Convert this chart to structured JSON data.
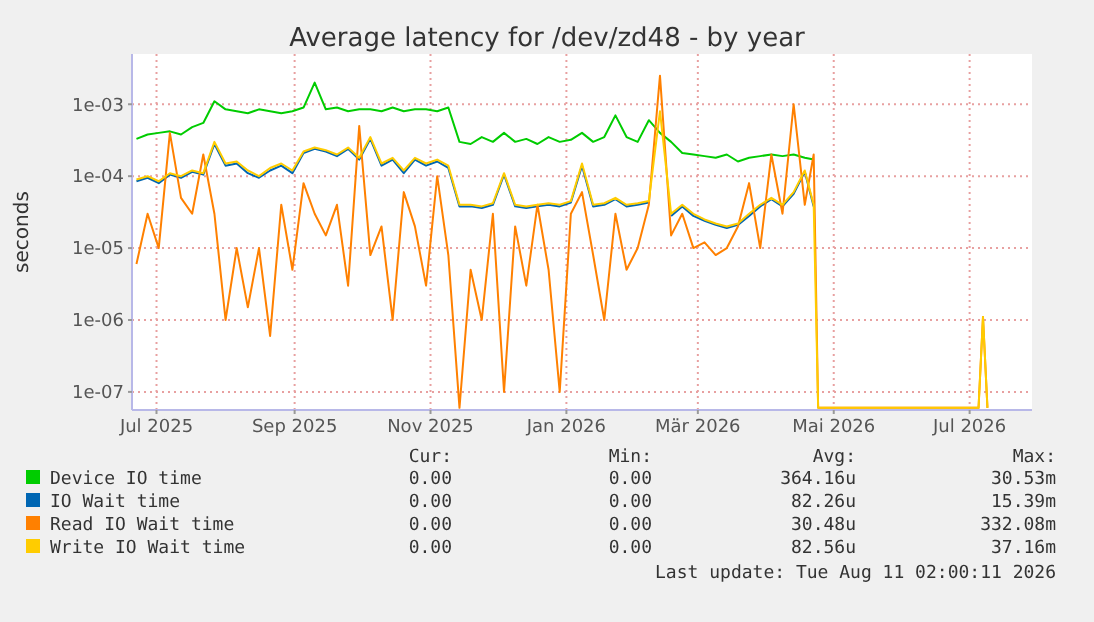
{
  "chart_data": {
    "type": "line",
    "title": "Average latency for /dev/zd48 - by year",
    "ylabel": "seconds",
    "log": true,
    "grid": true,
    "legend": "bottom",
    "xlim": [
      "2025-06-20",
      "2026-07-29"
    ],
    "xticks": [
      {
        "value": "2025-07-01",
        "label": "Jul 2025"
      },
      {
        "value": "2025-09-01",
        "label": "Sep 2025"
      },
      {
        "value": "2025-11-01",
        "label": "Nov 2025"
      },
      {
        "value": "2026-01-01",
        "label": "Jan 2026"
      },
      {
        "value": "2026-03-01",
        "label": "Mär 2026"
      },
      {
        "value": "2026-05-01",
        "label": "Mai 2026"
      },
      {
        "value": "2026-07-01",
        "label": "Jul 2026"
      }
    ],
    "ylim": [
      5.6e-08,
      0.005
    ],
    "yticks": [
      {
        "value": 1e-07,
        "label": "1e-07"
      },
      {
        "value": 1e-06,
        "label": "1e-06"
      },
      {
        "value": 1e-05,
        "label": "1e-05"
      },
      {
        "value": 0.0001,
        "label": "1e-04"
      },
      {
        "value": 0.001,
        "label": "1e-03"
      }
    ],
    "x": [
      "2025-06-22",
      "2025-06-27",
      "2025-07-02",
      "2025-07-07",
      "2025-07-12",
      "2025-07-17",
      "2025-07-22",
      "2025-07-27",
      "2025-08-01",
      "2025-08-06",
      "2025-08-11",
      "2025-08-16",
      "2025-08-21",
      "2025-08-26",
      "2025-08-31",
      "2025-09-05",
      "2025-09-10",
      "2025-09-15",
      "2025-09-20",
      "2025-09-25",
      "2025-09-30",
      "2025-10-05",
      "2025-10-10",
      "2025-10-15",
      "2025-10-20",
      "2025-10-25",
      "2025-10-30",
      "2025-11-04",
      "2025-11-09",
      "2025-11-14",
      "2025-11-19",
      "2025-11-24",
      "2025-11-29",
      "2025-12-04",
      "2025-12-09",
      "2025-12-14",
      "2025-12-19",
      "2025-12-24",
      "2025-12-29",
      "2026-01-03",
      "2026-01-08",
      "2026-01-13",
      "2026-01-18",
      "2026-01-23",
      "2026-01-28",
      "2026-02-02",
      "2026-02-07",
      "2026-02-12",
      "2026-02-17",
      "2026-02-22",
      "2026-02-27",
      "2026-03-04",
      "2026-03-09",
      "2026-03-14",
      "2026-03-19",
      "2026-03-24",
      "2026-03-29",
      "2026-04-03",
      "2026-04-08",
      "2026-04-13",
      "2026-04-18",
      "2026-04-22",
      "2026-04-24",
      "2026-07-05",
      "2026-07-07",
      "2026-07-09"
    ],
    "series": [
      {
        "name": "Device IO time",
        "color": "#00cc00",
        "values": [
          0.00033,
          0.00038,
          0.0004,
          0.00042,
          0.00038,
          0.00048,
          0.00055,
          0.0011,
          0.00085,
          0.0008,
          0.00075,
          0.00085,
          0.0008,
          0.00075,
          0.0008,
          0.0009,
          0.002,
          0.00085,
          0.0009,
          0.0008,
          0.00085,
          0.00085,
          0.0008,
          0.0009,
          0.0008,
          0.00085,
          0.00085,
          0.0008,
          0.0009,
          0.0003,
          0.00028,
          0.00035,
          0.0003,
          0.0004,
          0.0003,
          0.00033,
          0.00028,
          0.00035,
          0.0003,
          0.00032,
          0.0004,
          0.0003,
          0.00035,
          0.0007,
          0.00035,
          0.0003,
          0.0006,
          0.0004,
          0.0003,
          0.00021,
          0.0002,
          0.00019,
          0.00018,
          0.0002,
          0.00016,
          0.00018,
          0.00019,
          0.0002,
          0.00019,
          0.0002,
          0.00018,
          0.00017,
          null,
          null,
          null,
          null
        ]
      },
      {
        "name": "IO Wait time",
        "color": "#0066b3",
        "values": [
          8.5e-05,
          9.5e-05,
          8e-05,
          0.000105,
          9.5e-05,
          0.000115,
          0.000105,
          0.00028,
          0.00014,
          0.00015,
          0.00011,
          9.5e-05,
          0.00012,
          0.00014,
          0.00011,
          0.00021,
          0.00024,
          0.00022,
          0.00019,
          0.00024,
          0.00017,
          0.00033,
          0.00014,
          0.00017,
          0.00011,
          0.00017,
          0.00014,
          0.00016,
          0.00013,
          3.8e-05,
          3.8e-05,
          3.6e-05,
          4e-05,
          0.000105,
          3.8e-05,
          3.6e-05,
          3.8e-05,
          4e-05,
          3.8e-05,
          4.3e-05,
          0.00014,
          3.8e-05,
          4e-05,
          4.8e-05,
          3.8e-05,
          4e-05,
          4.3e-05,
          null,
          2.8e-05,
          3.8e-05,
          2.8e-05,
          2.4e-05,
          2.1e-05,
          1.9e-05,
          2.1e-05,
          2.8e-05,
          3.8e-05,
          4.8e-05,
          3.8e-05,
          5.7e-05,
          0.000115,
          3.8e-05,
          null,
          null,
          null,
          null
        ]
      },
      {
        "name": "Read IO Wait time",
        "color": "#ff8000",
        "values": [
          6e-06,
          3e-05,
          1e-05,
          0.0004,
          5e-05,
          3e-05,
          0.0002,
          3e-05,
          1e-06,
          1e-05,
          1.5e-06,
          1e-05,
          6e-07,
          4e-05,
          5e-06,
          8e-05,
          3e-05,
          1.5e-05,
          4e-05,
          3e-06,
          0.0005,
          8e-06,
          2e-05,
          1e-06,
          6e-05,
          2e-05,
          3e-06,
          0.0001,
          8e-06,
          6e-08,
          5e-06,
          1e-06,
          3e-05,
          1e-07,
          2e-05,
          3e-06,
          4e-05,
          5e-06,
          1e-07,
          3e-05,
          6e-05,
          8e-06,
          1e-06,
          3e-05,
          5e-06,
          1e-05,
          4e-05,
          0.0025,
          1.5e-05,
          3e-05,
          1e-05,
          1.2e-05,
          8e-06,
          1e-05,
          2e-05,
          8e-05,
          1e-05,
          0.0002,
          3e-05,
          0.001,
          4e-05,
          0.0002,
          6e-08,
          6e-08,
          1.1e-06,
          6e-08
        ]
      },
      {
        "name": "Write IO Wait time",
        "color": "#ffcc00",
        "values": [
          9e-05,
          0.0001,
          8.5e-05,
          0.00011,
          0.0001,
          0.00012,
          0.00011,
          0.0003,
          0.00015,
          0.00016,
          0.00012,
          0.0001,
          0.00013,
          0.00015,
          0.00012,
          0.00022,
          0.00025,
          0.00023,
          0.0002,
          0.00025,
          0.00018,
          0.00035,
          0.00015,
          0.00018,
          0.00012,
          0.00018,
          0.00015,
          0.00017,
          0.00014,
          4e-05,
          4e-05,
          3.8e-05,
          4.2e-05,
          0.00011,
          4e-05,
          3.8e-05,
          4e-05,
          4.2e-05,
          4e-05,
          4.5e-05,
          0.00015,
          4e-05,
          4.2e-05,
          5e-05,
          4e-05,
          4.2e-05,
          4.5e-05,
          0.0008,
          3e-05,
          4e-05,
          3e-05,
          2.5e-05,
          2.2e-05,
          2e-05,
          2.2e-05,
          3e-05,
          4e-05,
          5e-05,
          4e-05,
          6e-05,
          0.00012,
          4e-05,
          6e-08,
          6e-08,
          1.1e-06,
          6e-08
        ]
      }
    ],
    "annotations": [
      "Cur:",
      "Min:",
      "Avg:",
      "Max:",
      "0.00",
      "0.00",
      "364.16u",
      "30.53m",
      "0.00",
      "0.00",
      "82.26u",
      "15.39m",
      "0.00",
      "0.00",
      "30.48u",
      "332.08m",
      "0.00",
      "0.00",
      "82.56u",
      "37.16m",
      "Last update: Tue Aug 11 02:00:11 2026"
    ]
  }
}
